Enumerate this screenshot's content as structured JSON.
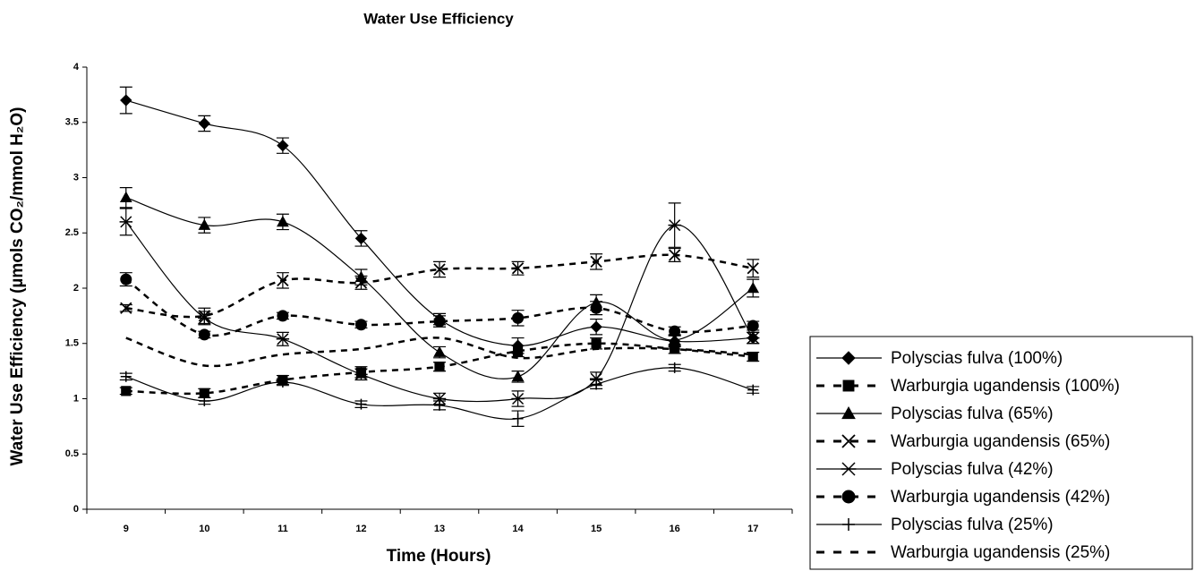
{
  "chart_data": {
    "type": "line",
    "title": "Water Use Efficiency",
    "x_label": "Time (Hours)",
    "y_label": "Water Use Efficiency (µmols CO₂/mmol H₂O)",
    "categories": [
      9,
      10,
      11,
      12,
      13,
      14,
      15,
      16,
      17
    ],
    "ylim": [
      0,
      4
    ],
    "yticks": [
      0,
      0.5,
      1,
      1.5,
      2,
      2.5,
      3,
      3.5,
      4
    ],
    "smooth": true,
    "legend": "right",
    "series": [
      {
        "name": "Polyscias fulva (100%)",
        "color": "#000000",
        "dashed": false,
        "marker": "diamond",
        "values": [
          3.7,
          3.49,
          3.29,
          2.45,
          1.72,
          1.48,
          1.65,
          1.52,
          1.55
        ],
        "errors": [
          0.12,
          0.07,
          0.07,
          0.07,
          0.05,
          0.07,
          0.07,
          0.05,
          0.05
        ]
      },
      {
        "name": "Warburgia ugandensis (100%)",
        "color": "#000000",
        "dashed": true,
        "marker": "square",
        "values": [
          1.07,
          1.05,
          1.17,
          1.24,
          1.29,
          1.43,
          1.5,
          1.45,
          1.38
        ],
        "errors": [
          0.03,
          0.04,
          0.04,
          0.05,
          0.04,
          0.05,
          0.05,
          0.04,
          0.04
        ]
      },
      {
        "name": "Polyscias fulva (65%)",
        "color": "#000000",
        "dashed": false,
        "marker": "triangle",
        "values": [
          2.82,
          2.57,
          2.6,
          2.1,
          1.42,
          1.2,
          1.87,
          1.53,
          2.0
        ],
        "errors": [
          0.09,
          0.07,
          0.07,
          0.07,
          0.05,
          0.05,
          0.07,
          0.05,
          0.08
        ]
      },
      {
        "name": "Warburgia ugandensis (65%)",
        "color": "#000000",
        "dashed": true,
        "marker": "x",
        "values": [
          1.82,
          1.75,
          2.07,
          2.05,
          2.17,
          2.18,
          2.24,
          2.3,
          2.18
        ],
        "errors": [
          0.03,
          0.07,
          0.07,
          0.06,
          0.07,
          0.06,
          0.07,
          0.06,
          0.08
        ]
      },
      {
        "name": "Polyscias fulva (42%)",
        "color": "#000000",
        "dashed": false,
        "marker": "asterisk",
        "values": [
          2.6,
          1.73,
          1.54,
          1.22,
          1.0,
          1.0,
          1.18,
          2.57,
          1.55
        ],
        "errors": [
          0.12,
          0.06,
          0.06,
          0.05,
          0.05,
          0.07,
          0.06,
          0.2,
          0.05
        ]
      },
      {
        "name": "Warburgia ugandensis (42%)",
        "color": "#000000",
        "dashed": true,
        "marker": "circle",
        "values": [
          2.08,
          1.58,
          1.75,
          1.67,
          1.7,
          1.73,
          1.82,
          1.61,
          1.66
        ],
        "errors": [
          0.06,
          0.03,
          0.03,
          0.03,
          0.05,
          0.07,
          0.06,
          0.04,
          0.04
        ]
      },
      {
        "name": "Polyscias fulva (25%)",
        "color": "#000000",
        "dashed": false,
        "marker": "plus",
        "values": [
          1.2,
          0.98,
          1.15,
          0.95,
          0.94,
          0.82,
          1.13,
          1.28,
          1.08
        ],
        "errors": [
          0.03,
          0.03,
          0.03,
          0.03,
          0.04,
          0.07,
          0.04,
          0.03,
          0.03
        ]
      },
      {
        "name": "Warburgia ugandensis (25%)",
        "color": "#000000",
        "dashed": true,
        "marker": "none",
        "values": [
          1.55,
          1.3,
          1.4,
          1.45,
          1.55,
          1.37,
          1.45,
          1.45,
          1.4
        ]
      }
    ]
  }
}
